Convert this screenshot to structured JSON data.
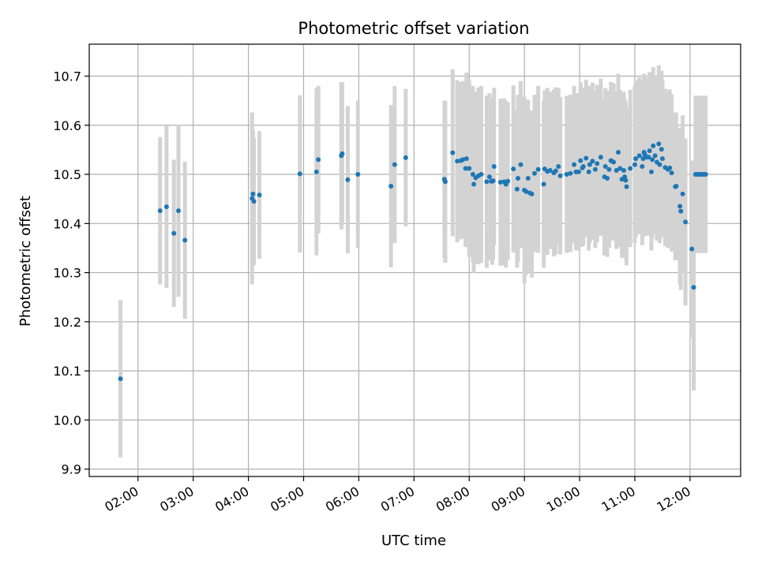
{
  "chart_data": {
    "type": "scatter",
    "title": "Photometric offset variation",
    "xlabel": "UTC time",
    "ylabel": "Photometric offset",
    "x_range": [
      "01:07",
      "12:55"
    ],
    "ylim": [
      9.885,
      10.765
    ],
    "x_ticks": [
      "02:00",
      "03:00",
      "04:00",
      "05:00",
      "06:00",
      "07:00",
      "08:00",
      "09:00",
      "10:00",
      "11:00",
      "12:00"
    ],
    "y_ticks": [
      9.9,
      10.0,
      10.1,
      10.2,
      10.3,
      10.4,
      10.5,
      10.6,
      10.7
    ],
    "y_tick_labels": [
      "9.9",
      "10.0",
      "10.1",
      "10.2",
      "10.3",
      "10.4",
      "10.5",
      "10.6",
      "10.7"
    ],
    "grid": true,
    "colors": {
      "marker": "#1f77b4",
      "error_bar": "#d3d3d3",
      "grid": "#b0b0b0"
    },
    "series": [
      {
        "x": [
          "01:41",
          "02:24",
          "02:31",
          "02:39",
          "02:44",
          "02:51",
          "04:04",
          "04:05",
          "04:06",
          "04:12",
          "04:56",
          "05:14",
          "05:16",
          "05:41",
          "05:42",
          "05:48",
          "05:59",
          "06:35",
          "06:39",
          "06:51",
          "07:33",
          "07:34",
          "07:42",
          "07:47",
          "07:51",
          "07:53",
          "07:56",
          "07:57",
          "08:00",
          "08:04",
          "08:05",
          "08:07",
          "08:10",
          "08:13",
          "08:19",
          "08:22",
          "08:24",
          "08:25",
          "08:26",
          "08:27",
          "08:34",
          "08:38",
          "08:40",
          "08:42",
          "08:48",
          "08:52",
          "08:53",
          "08:56",
          "09:00",
          "09:02",
          "09:04",
          "09:06",
          "09:08",
          "09:11",
          "09:15",
          "09:21",
          "09:22",
          "09:25",
          "09:28",
          "09:32",
          "09:34",
          "09:37",
          "09:39",
          "09:46",
          "09:50",
          "09:54",
          "09:56",
          "09:59",
          "10:01",
          "10:03",
          "10:04",
          "10:07",
          "10:10",
          "10:11",
          "10:14",
          "10:17",
          "10:19",
          "10:23",
          "10:27",
          "10:28",
          "10:30",
          "10:32",
          "10:34",
          "10:35",
          "10:37",
          "10:40",
          "10:42",
          "10:44",
          "10:46",
          "10:48",
          "10:49",
          "10:50",
          "10:51",
          "10:55",
          "11:00",
          "11:01",
          "11:05",
          "11:08",
          "11:09",
          "11:10",
          "11:11",
          "11:13",
          "11:15",
          "11:16",
          "11:18",
          "11:19",
          "11:20",
          "11:22",
          "11:24",
          "11:26",
          "11:27",
          "11:29",
          "11:30",
          "11:33",
          "11:36",
          "11:38",
          "11:40",
          "11:44",
          "11:45",
          "11:49",
          "11:50",
          "11:52",
          "11:55",
          "12:02",
          "12:04",
          "12:06",
          "12:08",
          "12:09",
          "12:10",
          "12:11",
          "12:13",
          "12:15",
          "12:17"
        ],
        "y": [
          10.084,
          10.426,
          10.434,
          10.38,
          10.426,
          10.366,
          10.451,
          10.46,
          10.445,
          10.458,
          10.501,
          10.505,
          10.53,
          10.538,
          10.542,
          10.489,
          10.5,
          10.476,
          10.52,
          10.534,
          10.49,
          10.485,
          10.544,
          10.527,
          10.528,
          10.53,
          10.512,
          10.532,
          10.512,
          10.5,
          10.48,
          10.493,
          10.497,
          10.5,
          10.485,
          10.495,
          10.486,
          10.486,
          10.487,
          10.516,
          10.484,
          10.485,
          10.48,
          10.486,
          10.511,
          10.47,
          10.492,
          10.52,
          10.468,
          10.465,
          10.492,
          10.462,
          10.46,
          10.502,
          10.51,
          10.48,
          10.511,
          10.506,
          10.508,
          10.503,
          10.507,
          10.516,
          10.497,
          10.5,
          10.502,
          10.52,
          10.505,
          10.505,
          10.528,
          10.513,
          10.516,
          10.533,
          10.505,
          10.52,
          10.527,
          10.51,
          10.522,
          10.535,
          10.495,
          10.516,
          10.492,
          10.51,
          10.528,
          10.527,
          10.525,
          10.508,
          10.545,
          10.512,
          10.49,
          10.508,
          10.495,
          10.488,
          10.475,
          10.512,
          10.52,
          10.532,
          10.538,
          10.516,
          10.532,
          10.545,
          10.54,
          10.535,
          10.535,
          10.548,
          10.505,
          10.53,
          10.558,
          10.538,
          10.525,
          10.562,
          10.52,
          10.551,
          10.532,
          10.514,
          10.51,
          10.513,
          10.503,
          10.475,
          10.476,
          10.435,
          10.425,
          10.46,
          10.403,
          10.348,
          10.27,
          10.5,
          10.5,
          10.5,
          10.5,
          10.5,
          10.5,
          10.5,
          10.5
        ],
        "yerr": [
          0.16,
          0.15,
          0.165,
          0.15,
          0.175,
          0.16,
          0.175,
          0.13,
          0.13,
          0.13,
          0.16,
          0.17,
          0.15,
          0.15,
          0.145,
          0.15,
          0.15,
          0.165,
          0.16,
          0.14,
          0.16,
          0.165,
          0.17,
          0.165,
          0.16,
          0.16,
          0.16,
          0.175,
          0.18,
          0.18,
          0.18,
          0.175,
          0.18,
          0.18,
          0.175,
          0.17,
          0.16,
          0.17,
          0.16,
          0.16,
          0.17,
          0.17,
          0.17,
          0.16,
          0.17,
          0.16,
          0.17,
          0.17,
          0.19,
          0.17,
          0.16,
          0.16,
          0.17,
          0.16,
          0.17,
          0.17,
          0.16,
          0.17,
          0.16,
          0.17,
          0.17,
          0.16,
          0.16,
          0.16,
          0.16,
          0.16,
          0.16,
          0.16,
          0.16,
          0.16,
          0.16,
          0.16,
          0.16,
          0.16,
          0.16,
          0.16,
          0.16,
          0.16,
          0.16,
          0.16,
          0.16,
          0.16,
          0.16,
          0.16,
          0.16,
          0.16,
          0.16,
          0.16,
          0.16,
          0.16,
          0.16,
          0.16,
          0.16,
          0.16,
          0.16,
          0.16,
          0.16,
          0.16,
          0.16,
          0.16,
          0.16,
          0.16,
          0.16,
          0.16,
          0.16,
          0.16,
          0.16,
          0.16,
          0.16,
          0.16,
          0.16,
          0.16,
          0.16,
          0.16,
          0.16,
          0.16,
          0.16,
          0.15,
          0.15,
          0.16,
          0.16,
          0.16,
          0.17,
          0.18,
          0.21,
          0.16,
          0.16,
          0.16,
          0.16,
          0.16,
          0.16,
          0.16,
          0.16
        ]
      }
    ]
  }
}
